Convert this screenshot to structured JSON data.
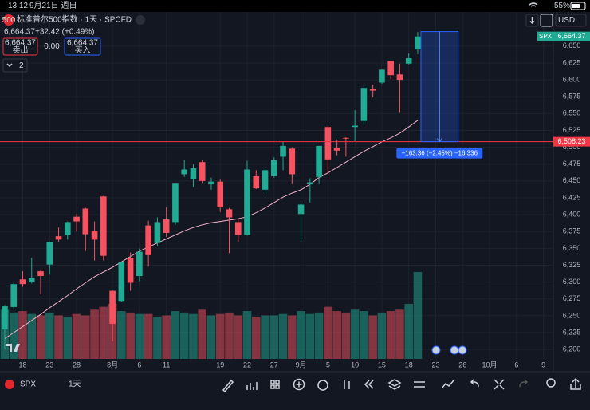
{
  "status_bar": {
    "time": "13:12",
    "date": "9月21日 週日",
    "battery": "55%"
  },
  "header": {
    "logo": "500",
    "title": "标准普尔500指数 · 1天 · SPCFD",
    "last": "6,664.37",
    "change": "+32.42 (+0.49%)",
    "sell_price": "6,664.37",
    "sell_label": "卖出",
    "spread": "0.00",
    "buy_price": "6,664.37",
    "buy_label": "买入",
    "indicator_count": "2",
    "currency": "USD"
  },
  "chart_data": {
    "type": "candlestick",
    "up_color": "#22ab94",
    "down_color": "#f7525f",
    "ma_color": "#f0b3c8",
    "grid": true,
    "open": [
      6230,
      6263,
      6304,
      6300,
      6316,
      6326,
      6368,
      6370,
      6397,
      6409,
      6376,
      6427,
      6287,
      6272,
      6336,
      6309,
      6384,
      6358,
      6393,
      6389,
      6460,
      6453,
      6478,
      6445,
      6449,
      6408,
      6389,
      6370,
      6457,
      6437,
      6457,
      6486,
      6498,
      6401,
      6445,
      6456,
      6530,
      6499,
      6514,
      6530,
      6539,
      6586,
      6596,
      6628,
      6608,
      6624,
      6645
    ],
    "high": [
      6266,
      6299,
      6316,
      6336,
      6318,
      6360,
      6381,
      6390,
      6401,
      6410,
      6390,
      6428,
      6288,
      6330,
      6344,
      6350,
      6391,
      6396,
      6411,
      6446,
      6481,
      6475,
      6481,
      6455,
      6452,
      6410,
      6393,
      6480,
      6466,
      6468,
      6485,
      6508,
      6500,
      6417,
      6454,
      6502,
      6532,
      6511,
      6515,
      6555,
      6592,
      6593,
      6616,
      6628,
      6624,
      6639,
      6671
    ],
    "low": [
      6201,
      6259,
      6293,
      6298,
      6282,
      6311,
      6360,
      6363,
      6375,
      6346,
      6332,
      6332,
      6212,
      6271,
      6287,
      6301,
      6323,
      6354,
      6367,
      6385,
      6456,
      6441,
      6446,
      6437,
      6404,
      6343,
      6360,
      6369,
      6438,
      6431,
      6455,
      6466,
      6445,
      6360,
      6418,
      6445,
      6460,
      6488,
      6486,
      6509,
      6533,
      6574,
      6594,
      6601,
      6551,
      6623,
      6638
    ],
    "close": [
      6264,
      6297,
      6297,
      6306,
      6309,
      6359,
      6363,
      6389,
      6390,
      6371,
      6363,
      6339,
      6238,
      6330,
      6299,
      6345,
      6340,
      6389,
      6373,
      6446,
      6467,
      6469,
      6450,
      6449,
      6411,
      6396,
      6370,
      6467,
      6439,
      6466,
      6481,
      6502,
      6460,
      6415,
      6448,
      6502,
      6482,
      6495,
      6513,
      6532,
      6588,
      6584,
      6615,
      6607,
      6600,
      6632,
      6664.37
    ],
    "volume": [
      3.4,
      3.2,
      3.3,
      3.1,
      3.0,
      3.2,
      3.0,
      2.9,
      3.1,
      3.0,
      3.4,
      3.6,
      3.8,
      3.3,
      3.2,
      3.1,
      3.1,
      2.9,
      3.0,
      3.3,
      3.2,
      3.1,
      3.4,
      3.0,
      3.1,
      3.2,
      3.0,
      3.3,
      2.9,
      3.0,
      3.0,
      3.1,
      3.0,
      3.3,
      3.1,
      3.2,
      3.6,
      3.3,
      3.2,
      3.4,
      3.3,
      3.0,
      3.2,
      3.3,
      3.4,
      3.8,
      6.0
    ],
    "ma": [
      6216,
      6225,
      6234,
      6243,
      6252,
      6262,
      6271,
      6280,
      6290,
      6299,
      6308,
      6315,
      6322,
      6330,
      6338,
      6346,
      6352,
      6358,
      6364,
      6370,
      6376,
      6381,
      6385,
      6388,
      6390,
      6392,
      6394,
      6397,
      6403,
      6410,
      6418,
      6426,
      6432,
      6437,
      6445,
      6455,
      6462,
      6470,
      6478,
      6486,
      6494,
      6501,
      6508,
      6514,
      6521,
      6530,
      6540
    ],
    "xlim": [
      -0.53,
      61.1
    ],
    "xticks": [
      {
        "value": 2,
        "label": "18"
      },
      {
        "value": 5,
        "label": "23"
      },
      {
        "value": 8,
        "label": "28"
      },
      {
        "value": 12,
        "label": "8月"
      },
      {
        "value": 15,
        "label": "6"
      },
      {
        "value": 18,
        "label": "11"
      },
      {
        "value": 24,
        "label": "19"
      },
      {
        "value": 27,
        "label": "22"
      },
      {
        "value": 30,
        "label": "27"
      },
      {
        "value": 33,
        "label": "9月"
      },
      {
        "value": 36,
        "label": "5"
      },
      {
        "value": 39,
        "label": "10"
      },
      {
        "value": 42,
        "label": "15"
      },
      {
        "value": 45,
        "label": "18"
      },
      {
        "value": 48,
        "label": "23"
      },
      {
        "value": 51,
        "label": "26"
      },
      {
        "value": 54,
        "label": "10月"
      },
      {
        "value": 57,
        "label": "6"
      },
      {
        "value": 60,
        "label": "9"
      }
    ],
    "ylim": [
      6186,
      6677
    ],
    "yticks": [
      {
        "value": 6200,
        "label": "6,200"
      },
      {
        "value": 6225,
        "label": "6,225"
      },
      {
        "value": 6250,
        "label": "6,250"
      },
      {
        "value": 6275,
        "label": "6,275"
      },
      {
        "value": 6300,
        "label": "6,300"
      },
      {
        "value": 6325,
        "label": "6,325"
      },
      {
        "value": 6350,
        "label": "6,350"
      },
      {
        "value": 6375,
        "label": "6,375"
      },
      {
        "value": 6400,
        "label": "6,400"
      },
      {
        "value": 6425,
        "label": "6,425"
      },
      {
        "value": 6450,
        "label": "6,450"
      },
      {
        "value": 6475,
        "label": "6,475"
      },
      {
        "value": 6500,
        "label": "6,500"
      },
      {
        "value": 6525,
        "label": "6,525"
      },
      {
        "value": 6550,
        "label": "6,550"
      },
      {
        "value": 6575,
        "label": "6,575"
      },
      {
        "value": 6600,
        "label": "6,600"
      },
      {
        "value": 6625,
        "label": "6,625"
      },
      {
        "value": 6650,
        "label": "6,650"
      }
    ],
    "last_price": {
      "value": 6664.37,
      "label": "6,664.37",
      "tag": "SPX"
    },
    "price_line": {
      "value": 6508.23,
      "label": "6,508.23",
      "color": "#f23645"
    },
    "measure": {
      "from": 6671.59,
      "to": 6508.23,
      "label": "−163.36 (−2.45%) −16,336"
    }
  },
  "toolbar": {
    "symbol": "SPX",
    "interval": "1天"
  }
}
